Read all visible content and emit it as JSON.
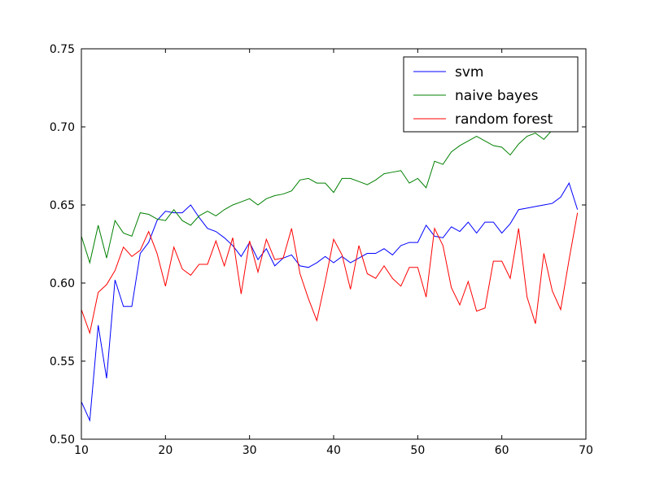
{
  "chart_data": {
    "type": "line",
    "title": "",
    "xlabel": "",
    "ylabel": "",
    "xlim": [
      10,
      70
    ],
    "ylim": [
      0.5,
      0.75
    ],
    "xticks": [
      10,
      20,
      30,
      40,
      50,
      60,
      70
    ],
    "yticks": [
      "0.50",
      "0.55",
      "0.60",
      "0.65",
      "0.70",
      "0.75"
    ],
    "grid": false,
    "legend_position": "top-right",
    "x": [
      10,
      11,
      12,
      13,
      14,
      15,
      16,
      17,
      18,
      19,
      20,
      21,
      22,
      23,
      24,
      25,
      26,
      27,
      28,
      29,
      30,
      31,
      32,
      33,
      34,
      35,
      36,
      37,
      38,
      39,
      40,
      41,
      42,
      43,
      44,
      45,
      46,
      47,
      48,
      49,
      50,
      51,
      52,
      53,
      54,
      55,
      56,
      57,
      58,
      59,
      60,
      61,
      62,
      63,
      64,
      65,
      66,
      67,
      68,
      69
    ],
    "series": [
      {
        "name": "svm",
        "color": "#0000ff",
        "values": [
          0.524,
          0.512,
          0.573,
          0.539,
          0.602,
          0.585,
          0.585,
          0.619,
          0.626,
          0.64,
          0.646,
          0.645,
          0.645,
          0.65,
          0.642,
          0.635,
          0.633,
          0.629,
          0.624,
          0.617,
          0.626,
          0.615,
          0.622,
          0.611,
          0.616,
          0.618,
          0.611,
          0.61,
          0.613,
          0.617,
          0.613,
          0.617,
          0.613,
          0.616,
          0.619,
          0.619,
          0.622,
          0.618,
          0.624,
          0.626,
          0.626,
          0.637,
          0.63,
          0.629,
          0.636,
          0.633,
          0.639,
          0.632,
          0.639,
          0.639,
          0.632,
          0.638,
          0.647,
          0.648,
          0.649,
          0.65,
          0.651,
          0.655,
          0.664,
          0.647
        ]
      },
      {
        "name": "naive bayes",
        "color": "#008000",
        "values": [
          0.63,
          0.613,
          0.637,
          0.616,
          0.64,
          0.632,
          0.63,
          0.645,
          0.644,
          0.641,
          0.64,
          0.647,
          0.64,
          0.637,
          0.643,
          0.646,
          0.643,
          0.647,
          0.65,
          0.652,
          0.654,
          0.65,
          0.654,
          0.656,
          0.657,
          0.659,
          0.666,
          0.667,
          0.664,
          0.664,
          0.658,
          0.667,
          0.667,
          0.665,
          0.663,
          0.666,
          0.67,
          0.671,
          0.672,
          0.664,
          0.667,
          0.661,
          0.678,
          0.676,
          0.684,
          0.688,
          0.691,
          0.694,
          0.691,
          0.688,
          0.687,
          0.682,
          0.689,
          0.694,
          0.696,
          0.692,
          0.698,
          0.7,
          0.702,
          0.705
        ]
      },
      {
        "name": "random forest",
        "color": "#ff0000",
        "values": [
          0.583,
          0.568,
          0.594,
          0.599,
          0.608,
          0.623,
          0.617,
          0.621,
          0.633,
          0.619,
          0.598,
          0.623,
          0.609,
          0.605,
          0.612,
          0.612,
          0.627,
          0.611,
          0.629,
          0.593,
          0.627,
          0.607,
          0.628,
          0.615,
          0.616,
          0.635,
          0.606,
          0.59,
          0.576,
          0.601,
          0.628,
          0.618,
          0.596,
          0.624,
          0.606,
          0.603,
          0.611,
          0.603,
          0.598,
          0.61,
          0.61,
          0.591,
          0.635,
          0.624,
          0.597,
          0.586,
          0.601,
          0.582,
          0.584,
          0.614,
          0.614,
          0.603,
          0.635,
          0.591,
          0.574,
          0.619,
          0.595,
          0.583,
          0.615,
          0.645
        ]
      }
    ]
  }
}
